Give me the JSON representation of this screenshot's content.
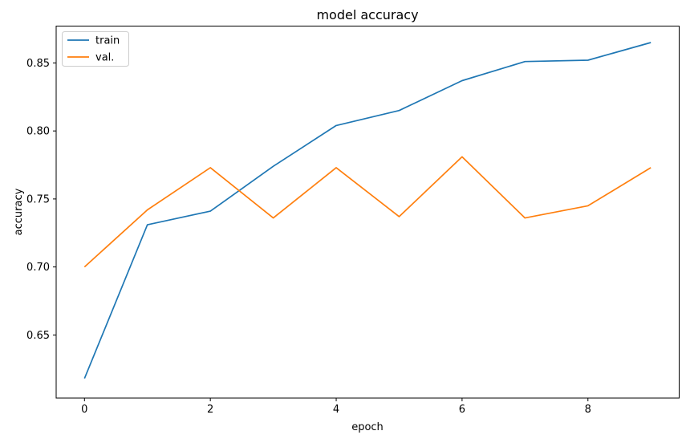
{
  "chart_data": {
    "type": "line",
    "title": "model accuracy",
    "xlabel": "epoch",
    "ylabel": "accuracy",
    "x": [
      0,
      1,
      2,
      3,
      4,
      5,
      6,
      7,
      8,
      9
    ],
    "series": [
      {
        "name": "train",
        "color": "#1f77b4",
        "values": [
          0.618,
          0.731,
          0.741,
          0.774,
          0.804,
          0.815,
          0.837,
          0.851,
          0.852,
          0.865
        ]
      },
      {
        "name": "val.",
        "color": "#ff7f0e",
        "values": [
          0.7,
          0.742,
          0.773,
          0.736,
          0.773,
          0.737,
          0.781,
          0.736,
          0.745,
          0.773
        ]
      }
    ],
    "xticks": [
      0,
      2,
      4,
      6,
      8
    ],
    "xtick_labels": [
      "0",
      "2",
      "4",
      "6",
      "8"
    ],
    "yticks": [
      0.65,
      0.7,
      0.75,
      0.8,
      0.85
    ],
    "ytick_labels": [
      "0.65",
      "0.70",
      "0.75",
      "0.80",
      "0.85"
    ],
    "xlim": [
      -0.45,
      9.45
    ],
    "ylim": [
      0.6036,
      0.8771
    ],
    "grid": false,
    "legend": {
      "position": "upper left",
      "entries": [
        "train",
        "val."
      ]
    },
    "colors": {
      "spine": "#000000",
      "legend_border": "#cccccc",
      "background": "#ffffff"
    }
  }
}
